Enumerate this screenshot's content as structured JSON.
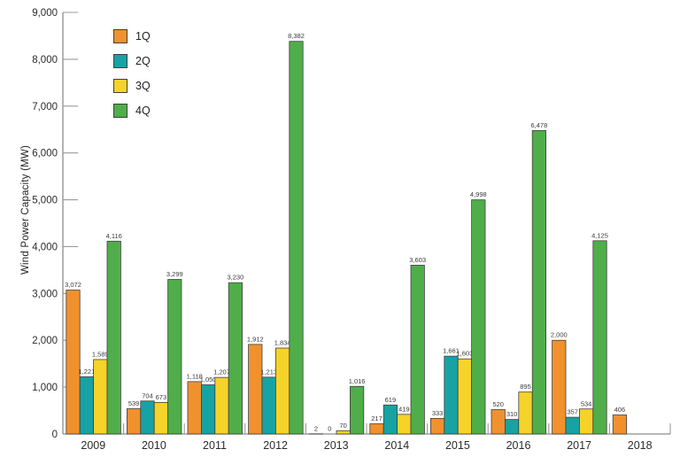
{
  "chart_data": {
    "type": "bar",
    "title": "",
    "xlabel": "",
    "ylabel": "Wind Power Capacity (MW)",
    "ylim": [
      0,
      9000
    ],
    "ytick_interval": 1000,
    "ytick_labels": [
      "0",
      "1,000",
      "2,000",
      "3,000",
      "4,000",
      "5,000",
      "6,000",
      "7,000",
      "8,000",
      "9,000"
    ],
    "grid": false,
    "value_labels": true,
    "legend_position": "top-left",
    "categories": [
      "2009",
      "2010",
      "2011",
      "2012",
      "2013",
      "2014",
      "2015",
      "2016",
      "2017",
      "2018"
    ],
    "series": [
      {
        "name": "1Q",
        "color": "#F0912D",
        "values": [
          3072,
          539,
          1118,
          1912,
          2,
          217,
          333,
          520,
          2000,
          406
        ]
      },
      {
        "name": "2Q",
        "color": "#17A3A3",
        "values": [
          1221,
          704,
          1050,
          1213,
          0,
          619,
          1661,
          310,
          357,
          null
        ]
      },
      {
        "name": "3Q",
        "color": "#F6D328",
        "values": [
          1589,
          673,
          1207,
          1834,
          70,
          419,
          1603,
          895,
          534,
          null
        ]
      },
      {
        "name": "4Q",
        "color": "#4FAE49",
        "values": [
          4116,
          3299,
          3230,
          8382,
          1016,
          3603,
          4998,
          6478,
          4125,
          null
        ]
      }
    ],
    "colors": {
      "bar_outline": "#3f3f3f",
      "axis": "#8c8c8c",
      "tick": "#9a9a9a",
      "tick_text": "#2b2b2b",
      "value_text": "#3a3a3a"
    }
  }
}
